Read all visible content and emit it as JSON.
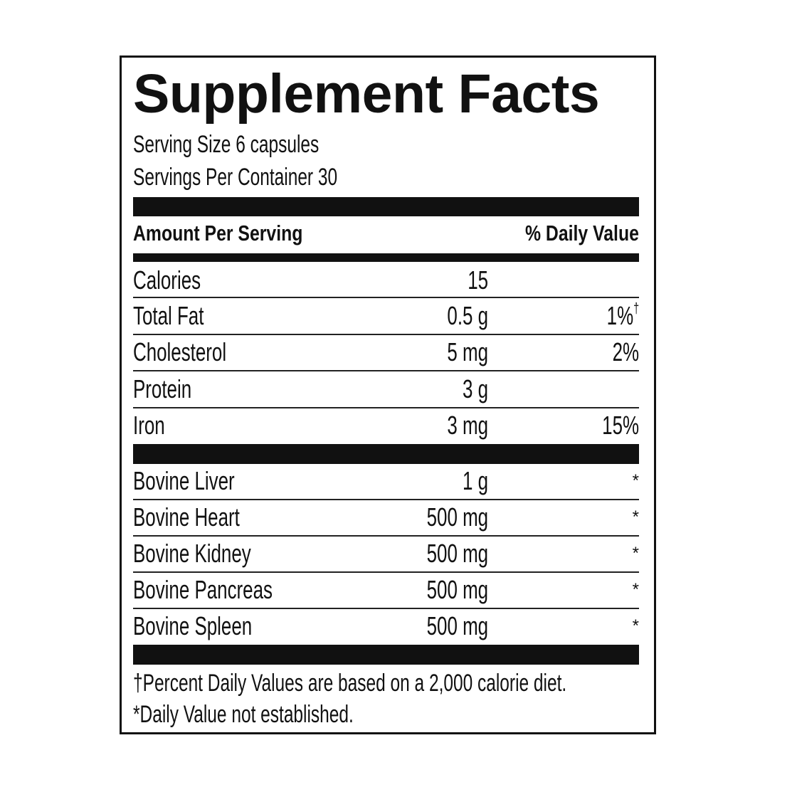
{
  "title": "Supplement Facts",
  "serving_size": "Serving Size 6 capsules",
  "servings_per_container": "Servings Per Container 30",
  "header": {
    "amount": "Amount Per Serving",
    "daily_value": "% Daily Value"
  },
  "nutrients": [
    {
      "name": "Calories",
      "amount": "15",
      "dv": ""
    },
    {
      "name": "Total Fat",
      "amount": "0.5 g",
      "dv": "1%",
      "dv_mark": "†"
    },
    {
      "name": "Cholesterol",
      "amount": "5 mg",
      "dv": "2%"
    },
    {
      "name": "Protein",
      "amount": "3 g",
      "dv": ""
    },
    {
      "name": "Iron",
      "amount": "3 mg",
      "dv": "15%"
    }
  ],
  "ingredients": [
    {
      "name": "Bovine Liver",
      "amount": "1 g",
      "dv": "*"
    },
    {
      "name": "Bovine Heart",
      "amount": "500 mg",
      "dv": "*"
    },
    {
      "name": "Bovine Kidney",
      "amount": "500 mg",
      "dv": "*"
    },
    {
      "name": "Bovine Pancreas",
      "amount": "500 mg",
      "dv": "*"
    },
    {
      "name": "Bovine Spleen",
      "amount": "500 mg",
      "dv": "*"
    }
  ],
  "footnotes": [
    "†Percent Daily Values are based on a 2,000 calorie diet.",
    "*Daily Value not established."
  ]
}
